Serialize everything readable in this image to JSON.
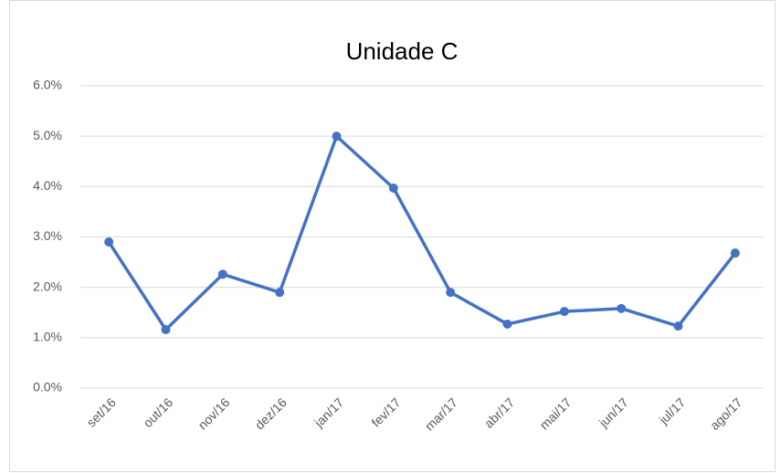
{
  "chart_data": {
    "type": "line",
    "title": "Unidade C",
    "categories": [
      "set/16",
      "out/16",
      "nov/16",
      "dez/16",
      "jan/17",
      "fev/17",
      "mar/17",
      "abr/17",
      "mai/17",
      "jun/17",
      "jul/17",
      "ago/17"
    ],
    "series": [
      {
        "name": "Unidade C",
        "color": "#4472c4",
        "values": [
          2.9,
          1.16,
          2.26,
          1.9,
          5.0,
          3.97,
          1.9,
          1.27,
          1.52,
          1.58,
          1.23,
          2.68
        ]
      }
    ],
    "ylim": [
      0,
      6
    ],
    "yticks": [
      {
        "value": 0,
        "label": "0.0%"
      },
      {
        "value": 1,
        "label": "1.0%"
      },
      {
        "value": 2,
        "label": "2.0%"
      },
      {
        "value": 3,
        "label": "3.0%"
      },
      {
        "value": 4,
        "label": "4.0%"
      },
      {
        "value": 5,
        "label": "5.0%"
      },
      {
        "value": 6,
        "label": "6.0%"
      }
    ],
    "grid": true
  }
}
